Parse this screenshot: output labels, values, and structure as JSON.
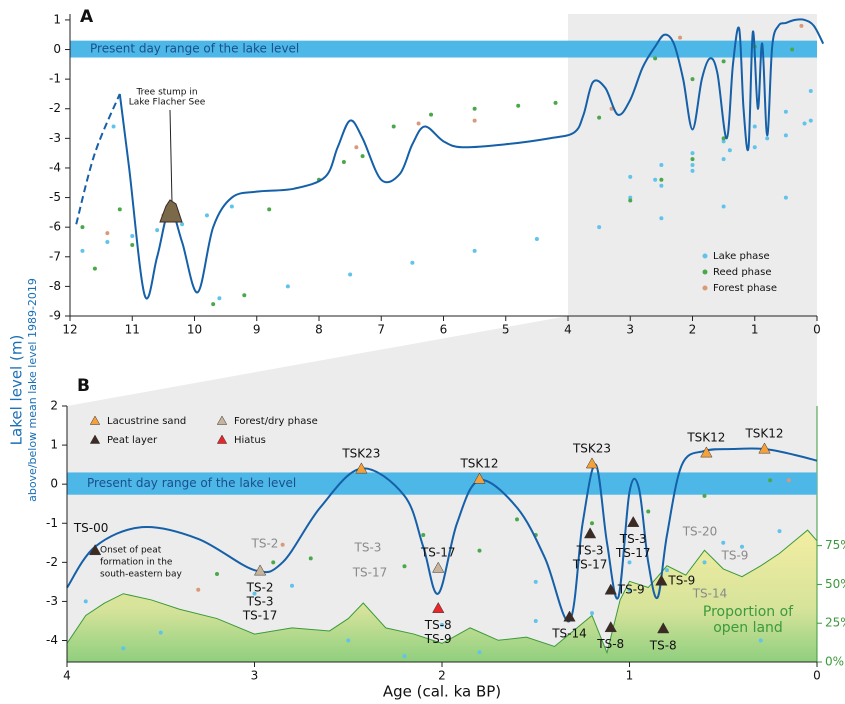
{
  "chart_data": [
    {
      "type": "line",
      "panel_label": "A",
      "xlim": [
        12,
        0
      ],
      "ylim": [
        -9,
        1.2
      ],
      "xticks": [
        12,
        11,
        10,
        9,
        8,
        7,
        6,
        5,
        4,
        3,
        2,
        1,
        0
      ],
      "yticks": [
        1,
        0,
        -1,
        -2,
        -3,
        -4,
        -5,
        -6,
        -7,
        -8,
        -9
      ],
      "ylabel": "Lakel level (m)",
      "ylabel_sub": "above/below mean lake level 1989-2019",
      "shade_xlim": [
        4,
        0
      ],
      "band": {
        "label": "Present day range of the lake level",
        "range": [
          -0.27,
          0.3
        ],
        "color": "#4db8e8"
      },
      "lines": [
        {
          "color": "#1560a8",
          "dashed": true,
          "x": [
            11.9,
            11.6,
            11.2
          ],
          "y": [
            -5.9,
            -3.5,
            -1.5
          ]
        },
        {
          "color": "#1560a8",
          "dashed": false,
          "x": [
            11.2,
            11.05,
            10.8,
            10.6,
            10.4,
            10.2,
            9.95,
            9.7,
            9.4,
            9.0,
            8.4,
            7.9,
            7.7,
            7.5,
            7.3,
            7.0,
            6.7,
            6.5,
            6.3,
            6.0,
            5.7,
            5.0,
            4.3,
            3.9,
            3.75,
            3.6,
            3.4,
            3.2,
            3.0,
            2.8,
            2.6,
            2.45,
            2.3,
            2.15,
            2.0,
            1.85,
            1.72,
            1.6,
            1.45,
            1.35,
            1.25,
            1.18,
            1.1,
            1.03,
            0.95,
            0.88,
            0.8,
            0.72,
            0.62,
            0.5,
            0.35,
            0.2,
            0.05,
            -0.1
          ],
          "y": [
            -1.5,
            -4.0,
            -8.3,
            -7.0,
            -5.4,
            -6.5,
            -8.2,
            -6.0,
            -5.0,
            -4.8,
            -4.7,
            -4.3,
            -3.3,
            -2.4,
            -3.0,
            -4.4,
            -4.2,
            -3.2,
            -2.6,
            -3.1,
            -3.3,
            -3.2,
            -3.0,
            -2.8,
            -2.2,
            -1.1,
            -1.3,
            -2.2,
            -1.7,
            -0.6,
            0.1,
            0.5,
            0.2,
            -1.0,
            -2.7,
            -1.0,
            -0.3,
            -0.8,
            -3.0,
            -0.5,
            0.7,
            -2.0,
            -3.3,
            0.6,
            -2.0,
            0.2,
            -2.9,
            0.1,
            0.8,
            0.9,
            1.0,
            1.0,
            0.8,
            0.2
          ]
        }
      ],
      "dots": [
        {
          "name": "Lake phase",
          "color": "#5fc3ec",
          "x": [
            11.8,
            11.4,
            11.0,
            10.6,
            10.2,
            9.8,
            9.4,
            9.6,
            8.5,
            7.5,
            6.5,
            5.5,
            4.5,
            3.5,
            2.5,
            1.5,
            0.5,
            3.0,
            2.5,
            2.0,
            1.5,
            1.0,
            0.5,
            0.1,
            3.0,
            2.5,
            2.0,
            1.5,
            1.0,
            0.5,
            0.1,
            2.6,
            2.0,
            1.4,
            0.8,
            0.2,
            11.3
          ],
          "y": [
            -6.8,
            -6.5,
            -6.3,
            -6.1,
            -5.9,
            -5.6,
            -5.3,
            -8.4,
            -8.0,
            -7.6,
            -7.2,
            -6.8,
            -6.4,
            -6.0,
            -5.7,
            -5.3,
            -5.0,
            -4.3,
            -3.9,
            -3.5,
            -3.1,
            -2.6,
            -2.1,
            -1.4,
            -5.0,
            -4.6,
            -4.1,
            -3.7,
            -3.3,
            -2.9,
            -2.4,
            -4.4,
            -3.9,
            -3.4,
            -3.0,
            -2.5,
            -2.6
          ]
        },
        {
          "name": "Reed phase",
          "color": "#4aa84a",
          "x": [
            11.8,
            11.2,
            11.6,
            11.0,
            9.7,
            9.2,
            8.8,
            8.0,
            7.6,
            7.3,
            6.8,
            6.2,
            5.5,
            4.8,
            4.2,
            3.5,
            3.0,
            2.5,
            2.0,
            1.5,
            2.6,
            2.0,
            1.5,
            1.0,
            0.4
          ],
          "y": [
            -6.0,
            -5.4,
            -7.4,
            -6.6,
            -8.6,
            -8.3,
            -5.4,
            -4.4,
            -3.8,
            -3.6,
            -2.6,
            -2.2,
            -2.0,
            -1.9,
            -1.8,
            -2.3,
            -5.1,
            -4.4,
            -3.7,
            -3.0,
            -0.3,
            -1.0,
            -0.4,
            0.1,
            0.0
          ]
        },
        {
          "name": "Forest phase",
          "color": "#d9997a",
          "x": [
            11.4,
            10.5,
            7.4,
            6.4,
            5.5,
            3.3,
            2.2,
            0.25
          ],
          "y": [
            -6.2,
            -5.6,
            -3.3,
            -2.5,
            -2.4,
            -2.0,
            0.4,
            0.8
          ]
        }
      ],
      "legend": "lower right",
      "annotation": [
        "Tree stump in",
        "Lake Flacher See"
      ]
    },
    {
      "type": "line",
      "panel_label": "B",
      "xlim": [
        4,
        0
      ],
      "ylim": [
        -4.55,
        2
      ],
      "xticks": [
        4,
        3,
        2,
        1,
        0
      ],
      "yticks": [
        2,
        1,
        0,
        -1,
        -2,
        -3,
        -4
      ],
      "y2lim": [
        0,
        165
      ],
      "y2ticks": [
        {
          "value": 0,
          "label": "0%"
        },
        {
          "value": 25,
          "label": "25%"
        },
        {
          "value": 50,
          "label": "50%"
        },
        {
          "value": 75,
          "label": "75%"
        }
      ],
      "xlabel": "Age (cal. ka BP)",
      "shade_xlim": [
        4,
        0
      ],
      "band": {
        "label": "Present day range of the lake level",
        "range": [
          -0.27,
          0.3
        ],
        "color": "#4db8e8"
      },
      "open_land": {
        "name": [
          "Proportion of",
          "open land"
        ],
        "axis": "y2",
        "color": "#3c9a3c",
        "x": [
          4.0,
          3.9,
          3.8,
          3.7,
          3.55,
          3.4,
          3.2,
          3.0,
          2.8,
          2.6,
          2.5,
          2.42,
          2.3,
          2.15,
          2.0,
          1.85,
          1.7,
          1.55,
          1.4,
          1.3,
          1.2,
          1.12,
          1.05,
          1.0,
          0.9,
          0.8,
          0.7,
          0.6,
          0.5,
          0.4,
          0.3,
          0.2,
          0.1,
          0.05,
          0.0
        ],
        "values": [
          12,
          30,
          38,
          44,
          40,
          34,
          28,
          18,
          22,
          20,
          28,
          38,
          22,
          18,
          12,
          22,
          14,
          16,
          10,
          20,
          30,
          6,
          40,
          52,
          48,
          62,
          56,
          72,
          60,
          55,
          62,
          70,
          80,
          85,
          78
        ]
      },
      "lines": [
        {
          "color": "#1560a8",
          "dashed": false,
          "x": [
            4.0,
            3.85,
            3.6,
            3.3,
            3.0,
            2.85,
            2.65,
            2.43,
            2.2,
            2.1,
            2.02,
            1.92,
            1.8,
            1.6,
            1.45,
            1.32,
            1.25,
            1.18,
            1.12,
            1.06,
            1.0,
            0.95,
            0.9,
            0.85,
            0.8,
            0.72,
            0.6,
            0.45,
            0.28,
            0.12,
            0.0
          ],
          "y": [
            -2.65,
            -1.6,
            -1.1,
            -1.4,
            -2.2,
            -2.0,
            -0.6,
            0.4,
            -0.3,
            -1.6,
            -2.8,
            -1.0,
            0.1,
            -0.6,
            -1.9,
            -3.5,
            -1.0,
            0.5,
            -1.5,
            -2.9,
            -0.2,
            -0.1,
            -2.0,
            -2.9,
            -1.3,
            0.5,
            0.85,
            0.9,
            0.9,
            0.75,
            0.6
          ]
        }
      ],
      "dots": [
        {
          "color": "#5fc3ec",
          "x": [
            3.9,
            3.5,
            3.0,
            2.5,
            2.2,
            2.0,
            1.8,
            1.5,
            1.2,
            1.0,
            0.8,
            0.6,
            0.4,
            0.2,
            1.5,
            1.0,
            0.5,
            2.8,
            3.7,
            0.3
          ],
          "y": [
            -3.0,
            -3.8,
            -2.8,
            -4.0,
            -4.4,
            -3.6,
            -4.3,
            -3.5,
            -3.3,
            -2.7,
            -2.2,
            -2.0,
            -1.6,
            -1.2,
            -2.5,
            -2.0,
            -1.5,
            -2.6,
            -4.2,
            -4.0
          ]
        },
        {
          "color": "#4aa84a",
          "x": [
            3.2,
            2.9,
            2.7,
            2.2,
            1.8,
            1.5,
            1.2,
            0.9,
            0.6,
            0.25,
            2.1,
            1.6
          ],
          "y": [
            -2.3,
            -2.0,
            -1.9,
            -2.1,
            -1.7,
            -1.3,
            -1.0,
            -0.7,
            -0.3,
            0.1,
            -1.3,
            -0.9
          ]
        },
        {
          "color": "#d9997a",
          "x": [
            2.85,
            0.15,
            3.3
          ],
          "y": [
            -1.55,
            0.1,
            -2.7
          ]
        }
      ],
      "markers": [
        {
          "name": "Lacustrine sand",
          "color": "#f4a13b",
          "x": [
            2.43,
            1.8,
            1.2,
            0.59,
            0.28
          ],
          "y": [
            0.39,
            0.13,
            0.52,
            0.8,
            0.9
          ],
          "labels": [
            [
              "TSK23"
            ],
            [
              "TSK12"
            ],
            [
              "TSK23"
            ],
            [
              "TSK12"
            ],
            [
              "TSK12"
            ]
          ]
        },
        {
          "name": "Peat layer",
          "color": "#3d2a22",
          "x": [
            3.85,
            1.32,
            1.21,
            1.1,
            1.1,
            0.98,
            0.83,
            0.82
          ],
          "y": [
            -1.7,
            -3.4,
            -1.27,
            -2.71,
            -3.67,
            -0.98,
            -2.48,
            -3.7
          ],
          "labels": [
            [
              "TS-00"
            ],
            [
              "TS-14"
            ],
            [
              "TS-3",
              "TS-17"
            ],
            [
              "TS-9"
            ],
            [
              "TS-8"
            ],
            [
              "TS-3",
              "TS-17"
            ],
            [
              "TS-9"
            ],
            [
              "TS-8"
            ]
          ]
        },
        {
          "name": "Forest/dry phase",
          "color": "#c8b49a",
          "x": [
            2.97,
            2.02
          ],
          "y": [
            -2.22,
            -2.15
          ],
          "labels": [
            [
              "TS-2",
              "TS-3",
              "TS-17"
            ],
            [
              "TS-17"
            ]
          ]
        },
        {
          "name": "Hiatus",
          "color": "#e8252a",
          "x": [
            2.02
          ],
          "y": [
            -3.18
          ],
          "labels": [
            [
              "TS-8",
              "TS-9"
            ]
          ]
        }
      ],
      "gray_labels": [
        "TS-2",
        "TS-3",
        "TS-17",
        "TS-20",
        "TS-9",
        "TS-14"
      ],
      "annotation": [
        "Onset of peat",
        "formation in the",
        "south-eastern bay"
      ]
    }
  ]
}
